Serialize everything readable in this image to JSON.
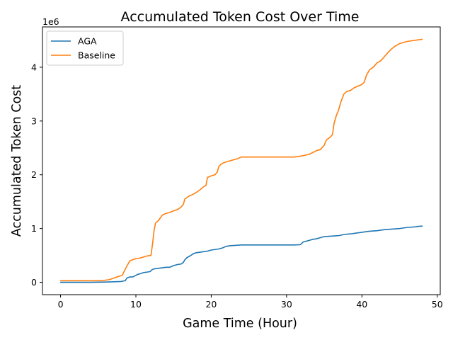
{
  "chart_data": {
    "type": "line",
    "title": "Accumulated Token Cost Over Time",
    "xlabel": "Game Time (Hour)",
    "ylabel": "Accumulated Token Cost",
    "y_offset_label": "1e6",
    "xlim": [
      -2.4,
      50.4
    ],
    "ylim": [
      -0.23,
      4.75
    ],
    "x_ticks": [
      0,
      10,
      20,
      30,
      40,
      50
    ],
    "y_ticks": [
      0,
      1,
      2,
      3,
      4
    ],
    "y_unit_multiplier": 1000000,
    "grid": false,
    "legend_position": "upper-left",
    "series": [
      {
        "name": "AGA",
        "color": "#1f77b4",
        "x": [
          0,
          2,
          4,
          6,
          8,
          8.6,
          8.8,
          9.2,
          9.6,
          10,
          10.3,
          10.6,
          11,
          11.5,
          11.9,
          12.1,
          12.4,
          13,
          13.5,
          14,
          14.5,
          15,
          15.5,
          16,
          16.3,
          16.5,
          16.8,
          17.3,
          17.6,
          18,
          18.5,
          19,
          19.5,
          20,
          20.5,
          21,
          21.5,
          22,
          22.5,
          23,
          23.5,
          24,
          26,
          28,
          30,
          31,
          31.8,
          32,
          32.2,
          33,
          33.5,
          34,
          34.5,
          35,
          35.5,
          36,
          36.5,
          37,
          37.5,
          38,
          38.5,
          39,
          39.5,
          40,
          40.5,
          41,
          41.5,
          42,
          42.5,
          43,
          43.5,
          44,
          44.5,
          45,
          45.5,
          46,
          46.5,
          47,
          47.5,
          48
        ],
        "y": [
          0.0,
          0.0,
          0.0,
          0.005,
          0.015,
          0.03,
          0.08,
          0.1,
          0.1,
          0.13,
          0.15,
          0.16,
          0.18,
          0.19,
          0.2,
          0.23,
          0.25,
          0.26,
          0.27,
          0.28,
          0.28,
          0.31,
          0.33,
          0.34,
          0.37,
          0.42,
          0.46,
          0.5,
          0.53,
          0.55,
          0.56,
          0.57,
          0.58,
          0.6,
          0.61,
          0.62,
          0.64,
          0.67,
          0.68,
          0.685,
          0.69,
          0.695,
          0.695,
          0.695,
          0.695,
          0.695,
          0.7,
          0.72,
          0.75,
          0.78,
          0.8,
          0.81,
          0.83,
          0.85,
          0.855,
          0.86,
          0.865,
          0.87,
          0.885,
          0.895,
          0.9,
          0.91,
          0.92,
          0.93,
          0.94,
          0.95,
          0.955,
          0.96,
          0.97,
          0.98,
          0.985,
          0.99,
          0.995,
          1.0,
          1.01,
          1.02,
          1.025,
          1.03,
          1.04,
          1.045
        ]
      },
      {
        "name": "Baseline",
        "color": "#ff7f0e",
        "x": [
          0,
          2,
          4,
          5.5,
          6.5,
          7.5,
          8.2,
          8.5,
          8.8,
          9.2,
          9.6,
          10,
          10.5,
          11,
          11.5,
          12,
          12.2,
          12.4,
          12.6,
          13,
          13.5,
          14,
          14.5,
          15,
          15.5,
          16,
          16.3,
          16.5,
          17,
          17.5,
          18,
          18.5,
          19,
          19.3,
          19.5,
          20,
          20.5,
          20.8,
          21,
          21.3,
          21.6,
          22,
          22.5,
          23,
          23.5,
          24,
          24.5,
          26,
          28,
          30,
          31,
          32,
          33,
          34,
          34.5,
          35,
          35.3,
          35.8,
          36.1,
          36.3,
          36.6,
          36.9,
          37.2,
          37.6,
          38,
          38.5,
          39,
          39.5,
          40,
          40.3,
          40.6,
          41,
          41.5,
          42,
          42.5,
          43,
          43.5,
          44,
          44.5,
          45,
          45.5,
          46,
          46.5,
          47,
          47.5,
          48
        ],
        "y": [
          0.03,
          0.03,
          0.03,
          0.03,
          0.05,
          0.1,
          0.13,
          0.22,
          0.3,
          0.4,
          0.42,
          0.44,
          0.45,
          0.47,
          0.49,
          0.5,
          0.7,
          0.95,
          1.1,
          1.15,
          1.25,
          1.28,
          1.3,
          1.33,
          1.35,
          1.4,
          1.45,
          1.55,
          1.6,
          1.63,
          1.67,
          1.72,
          1.78,
          1.8,
          1.95,
          1.98,
          2.0,
          2.05,
          2.15,
          2.2,
          2.22,
          2.24,
          2.26,
          2.28,
          2.3,
          2.33,
          2.33,
          2.33,
          2.33,
          2.33,
          2.33,
          2.35,
          2.38,
          2.45,
          2.47,
          2.55,
          2.65,
          2.7,
          2.75,
          2.95,
          3.1,
          3.2,
          3.35,
          3.5,
          3.55,
          3.57,
          3.62,
          3.65,
          3.68,
          3.72,
          3.85,
          3.95,
          4.0,
          4.08,
          4.12,
          4.2,
          4.28,
          4.35,
          4.4,
          4.44,
          4.46,
          4.48,
          4.49,
          4.5,
          4.51,
          4.52
        ]
      }
    ]
  }
}
